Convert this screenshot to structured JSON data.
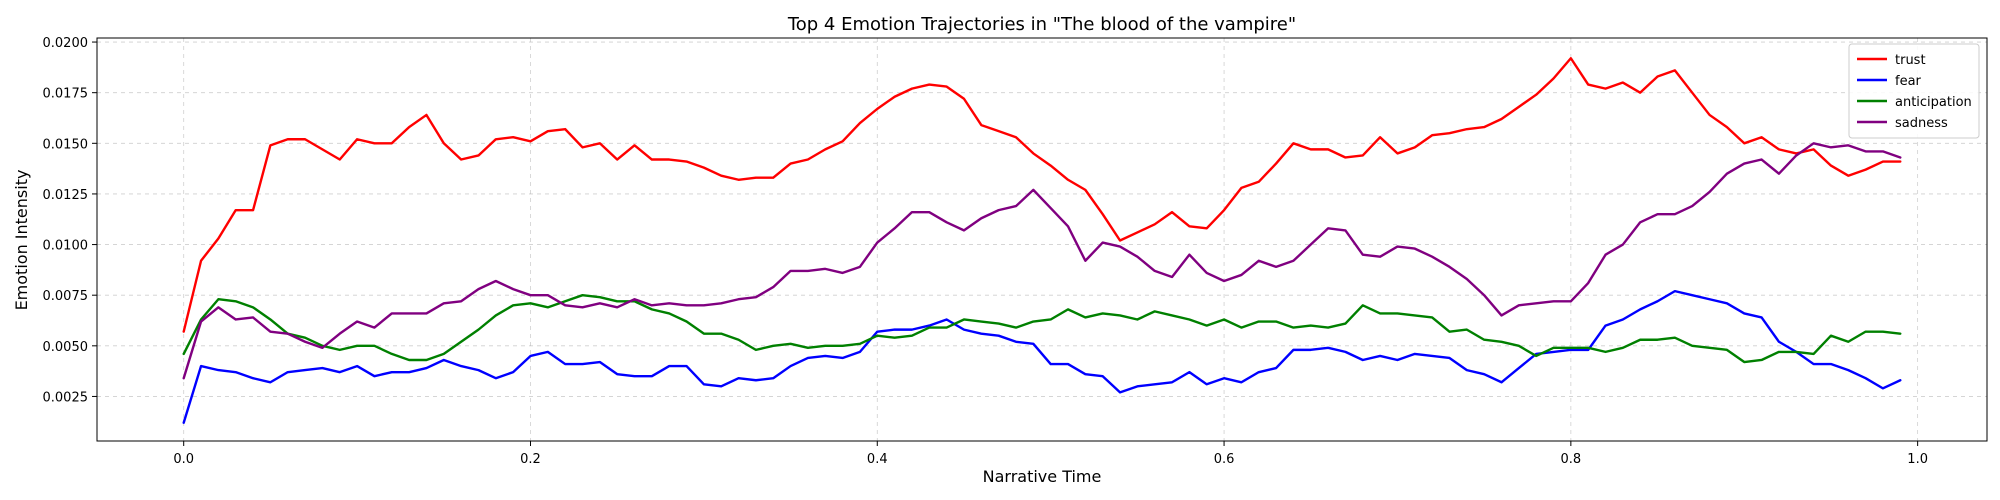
{
  "chart_data": {
    "type": "line",
    "title": "Top 4 Emotion Trajectories in \"The blood of the vampire\"",
    "xlabel": "Narrative Time",
    "ylabel": "Emotion Intensity",
    "xlim": [
      -0.05,
      1.04
    ],
    "ylim": [
      0.0003,
      0.0202
    ],
    "xticks": [
      0.0,
      0.2,
      0.4,
      0.6,
      0.8,
      1.0
    ],
    "xtick_labels": [
      "0.0",
      "0.2",
      "0.4",
      "0.6",
      "0.8",
      "1.0"
    ],
    "yticks": [
      0.0025,
      0.005,
      0.0075,
      0.01,
      0.0125,
      0.015,
      0.0175,
      0.02
    ],
    "ytick_labels": [
      "0.0025",
      "0.0050",
      "0.0075",
      "0.0100",
      "0.0125",
      "0.0150",
      "0.0175",
      "0.0200"
    ],
    "grid": true,
    "legend_position": "top-right",
    "x": [
      0.0,
      0.01,
      0.02,
      0.03,
      0.04,
      0.05,
      0.06,
      0.07,
      0.08,
      0.09,
      0.1,
      0.11,
      0.12,
      0.13,
      0.14,
      0.15,
      0.16,
      0.17,
      0.18,
      0.19,
      0.2,
      0.21,
      0.22,
      0.23,
      0.24,
      0.25,
      0.26,
      0.27,
      0.28,
      0.29,
      0.3,
      0.31,
      0.32,
      0.33,
      0.34,
      0.35,
      0.36,
      0.37,
      0.38,
      0.39,
      0.4,
      0.41,
      0.42,
      0.43,
      0.44,
      0.45,
      0.46,
      0.47,
      0.48,
      0.49,
      0.5,
      0.51,
      0.52,
      0.53,
      0.54,
      0.55,
      0.56,
      0.57,
      0.58,
      0.59,
      0.6,
      0.61,
      0.62,
      0.63,
      0.64,
      0.65,
      0.66,
      0.67,
      0.68,
      0.69,
      0.7,
      0.71,
      0.72,
      0.73,
      0.74,
      0.75,
      0.76,
      0.77,
      0.78,
      0.79,
      0.8,
      0.81,
      0.82,
      0.83,
      0.84,
      0.85,
      0.86,
      0.87,
      0.88,
      0.89,
      0.9,
      0.91,
      0.92,
      0.93,
      0.94,
      0.95,
      0.96,
      0.97,
      0.98,
      0.99
    ],
    "series": [
      {
        "name": "trust",
        "color": "#ff0000",
        "values": [
          0.0057,
          0.0092,
          0.0103,
          0.0117,
          0.0117,
          0.0149,
          0.0152,
          0.0152,
          0.0147,
          0.0142,
          0.0152,
          0.015,
          0.015,
          0.0158,
          0.0164,
          0.015,
          0.0142,
          0.0144,
          0.0152,
          0.0153,
          0.0151,
          0.0156,
          0.0157,
          0.0148,
          0.015,
          0.0142,
          0.0149,
          0.0142,
          0.0142,
          0.0141,
          0.0138,
          0.0134,
          0.0132,
          0.0133,
          0.0133,
          0.014,
          0.0142,
          0.0147,
          0.0151,
          0.016,
          0.0167,
          0.0173,
          0.0177,
          0.0179,
          0.0178,
          0.0172,
          0.0159,
          0.0156,
          0.0153,
          0.0145,
          0.0139,
          0.0132,
          0.0127,
          0.0115,
          0.0102,
          0.0106,
          0.011,
          0.0116,
          0.0109,
          0.0108,
          0.0117,
          0.0128,
          0.0131,
          0.014,
          0.015,
          0.0147,
          0.0147,
          0.0143,
          0.0144,
          0.0153,
          0.0145,
          0.0148,
          0.0154,
          0.0155,
          0.0157,
          0.0158,
          0.0162,
          0.0168,
          0.0174,
          0.0182,
          0.0192,
          0.0179,
          0.0177,
          0.018,
          0.0175,
          0.0183,
          0.0186,
          0.0175,
          0.0164,
          0.0158,
          0.015,
          0.0153,
          0.0147,
          0.0145,
          0.0147,
          0.0139,
          0.0134,
          0.0137,
          0.0141,
          0.0141
        ]
      },
      {
        "name": "fear",
        "color": "#0000ff",
        "values": [
          0.0012,
          0.004,
          0.0038,
          0.0037,
          0.0034,
          0.0032,
          0.0037,
          0.0038,
          0.0039,
          0.0037,
          0.004,
          0.0035,
          0.0037,
          0.0037,
          0.0039,
          0.0043,
          0.004,
          0.0038,
          0.0034,
          0.0037,
          0.0045,
          0.0047,
          0.0041,
          0.0041,
          0.0042,
          0.0036,
          0.0035,
          0.0035,
          0.004,
          0.004,
          0.0031,
          0.003,
          0.0034,
          0.0033,
          0.0034,
          0.004,
          0.0044,
          0.0045,
          0.0044,
          0.0047,
          0.0057,
          0.0058,
          0.0058,
          0.006,
          0.0063,
          0.0058,
          0.0056,
          0.0055,
          0.0052,
          0.0051,
          0.0041,
          0.0041,
          0.0036,
          0.0035,
          0.0027,
          0.003,
          0.0031,
          0.0032,
          0.0037,
          0.0031,
          0.0034,
          0.0032,
          0.0037,
          0.0039,
          0.0048,
          0.0048,
          0.0049,
          0.0047,
          0.0043,
          0.0045,
          0.0043,
          0.0046,
          0.0045,
          0.0044,
          0.0038,
          0.0036,
          0.0032,
          0.0039,
          0.0046,
          0.0047,
          0.0048,
          0.0048,
          0.006,
          0.0063,
          0.0068,
          0.0072,
          0.0077,
          0.0075,
          0.0073,
          0.0071,
          0.0066,
          0.0064,
          0.0052,
          0.0047,
          0.0041,
          0.0041,
          0.0038,
          0.0034,
          0.0029,
          0.0033
        ]
      },
      {
        "name": "anticipation",
        "color": "#008000",
        "values": [
          0.0046,
          0.0063,
          0.0073,
          0.0072,
          0.0069,
          0.0063,
          0.0056,
          0.0054,
          0.005,
          0.0048,
          0.005,
          0.005,
          0.0046,
          0.0043,
          0.0043,
          0.0046,
          0.0052,
          0.0058,
          0.0065,
          0.007,
          0.0071,
          0.0069,
          0.0072,
          0.0075,
          0.0074,
          0.0072,
          0.0072,
          0.0068,
          0.0066,
          0.0062,
          0.0056,
          0.0056,
          0.0053,
          0.0048,
          0.005,
          0.0051,
          0.0049,
          0.005,
          0.005,
          0.0051,
          0.0055,
          0.0054,
          0.0055,
          0.0059,
          0.0059,
          0.0063,
          0.0062,
          0.0061,
          0.0059,
          0.0062,
          0.0063,
          0.0068,
          0.0064,
          0.0066,
          0.0065,
          0.0063,
          0.0067,
          0.0065,
          0.0063,
          0.006,
          0.0063,
          0.0059,
          0.0062,
          0.0062,
          0.0059,
          0.006,
          0.0059,
          0.0061,
          0.007,
          0.0066,
          0.0066,
          0.0065,
          0.0064,
          0.0057,
          0.0058,
          0.0053,
          0.0052,
          0.005,
          0.0045,
          0.0049,
          0.0049,
          0.0049,
          0.0047,
          0.0049,
          0.0053,
          0.0053,
          0.0054,
          0.005,
          0.0049,
          0.0048,
          0.0042,
          0.0043,
          0.0047,
          0.0047,
          0.0046,
          0.0055,
          0.0052,
          0.0057,
          0.0057,
          0.0056
        ]
      },
      {
        "name": "sadness",
        "color": "#800080",
        "values": [
          0.0034,
          0.0062,
          0.0069,
          0.0063,
          0.0064,
          0.0057,
          0.0056,
          0.0052,
          0.0049,
          0.0056,
          0.0062,
          0.0059,
          0.0066,
          0.0066,
          0.0066,
          0.0071,
          0.0072,
          0.0078,
          0.0082,
          0.0078,
          0.0075,
          0.0075,
          0.007,
          0.0069,
          0.0071,
          0.0069,
          0.0073,
          0.007,
          0.0071,
          0.007,
          0.007,
          0.0071,
          0.0073,
          0.0074,
          0.0079,
          0.0087,
          0.0087,
          0.0088,
          0.0086,
          0.0089,
          0.0101,
          0.0108,
          0.0116,
          0.0116,
          0.0111,
          0.0107,
          0.0113,
          0.0117,
          0.0119,
          0.0127,
          0.0118,
          0.0109,
          0.0092,
          0.0101,
          0.0099,
          0.0094,
          0.0087,
          0.0084,
          0.0095,
          0.0086,
          0.0082,
          0.0085,
          0.0092,
          0.0089,
          0.0092,
          0.01,
          0.0108,
          0.0107,
          0.0095,
          0.0094,
          0.0099,
          0.0098,
          0.0094,
          0.0089,
          0.0083,
          0.0075,
          0.0065,
          0.007,
          0.0071,
          0.0072,
          0.0072,
          0.0081,
          0.0095,
          0.01,
          0.0111,
          0.0115,
          0.0115,
          0.0119,
          0.0126,
          0.0135,
          0.014,
          0.0142,
          0.0135,
          0.0144,
          0.015,
          0.0148,
          0.0149,
          0.0146,
          0.0146,
          0.0143
        ]
      }
    ]
  }
}
